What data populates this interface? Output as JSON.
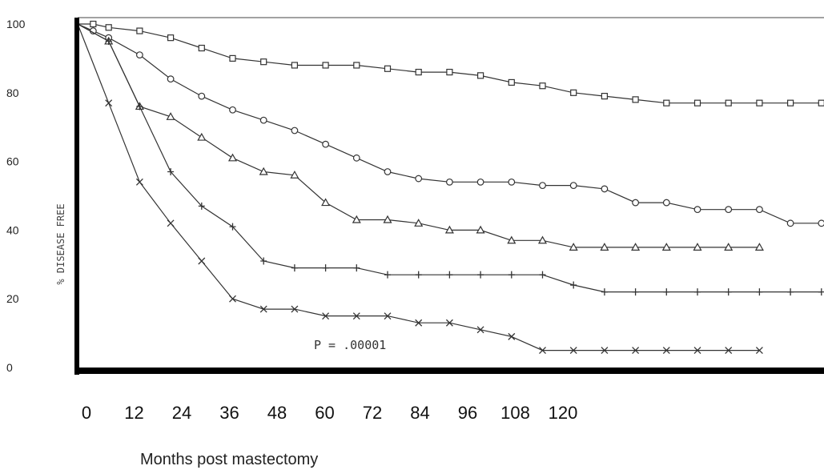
{
  "chart_data": {
    "type": "line",
    "ylabel": "% DISEASE FREE",
    "xlabel": "Months post mastectomy",
    "annotation": "P = .00001",
    "ylim": [
      0,
      100
    ],
    "xlim": [
      0,
      144
    ],
    "yticks": [
      0,
      20,
      40,
      60,
      80,
      100
    ],
    "xticks": [
      0,
      12,
      24,
      36,
      48,
      60,
      72,
      84,
      96,
      108,
      120
    ],
    "grid": false,
    "legend": "none",
    "series": [
      {
        "marker": "square",
        "x": [
          0,
          3,
          6,
          12,
          18,
          24,
          30,
          36,
          42,
          48,
          54,
          60,
          66,
          72,
          78,
          84,
          90,
          96,
          102,
          108,
          114,
          120,
          126,
          132,
          138,
          144
        ],
        "y": [
          100,
          100,
          99,
          98,
          96,
          93,
          90,
          89,
          88,
          88,
          88,
          87,
          86,
          86,
          85,
          83,
          82,
          80,
          79,
          78,
          77,
          77,
          77,
          77,
          77,
          77
        ]
      },
      {
        "marker": "circle",
        "x": [
          0,
          3,
          6,
          12,
          18,
          24,
          30,
          36,
          42,
          48,
          54,
          60,
          66,
          72,
          78,
          84,
          90,
          96,
          102,
          108,
          114,
          120,
          126,
          132,
          138,
          144
        ],
        "y": [
          100,
          98,
          96,
          91,
          84,
          79,
          75,
          72,
          69,
          65,
          61,
          57,
          55,
          54,
          54,
          54,
          53,
          53,
          52,
          48,
          48,
          46,
          46,
          46,
          42,
          42
        ]
      },
      {
        "marker": "triangle",
        "x": [
          0,
          6,
          12,
          18,
          24,
          30,
          36,
          42,
          48,
          54,
          60,
          66,
          72,
          78,
          84,
          90,
          96,
          102,
          108,
          114,
          120,
          126,
          132
        ],
        "y": [
          100,
          95,
          76,
          73,
          67,
          61,
          57,
          56,
          48,
          43,
          43,
          42,
          40,
          40,
          37,
          37,
          35,
          35,
          35,
          35,
          35,
          35,
          35
        ]
      },
      {
        "marker": "plus",
        "x": [
          0,
          6,
          12,
          18,
          24,
          30,
          36,
          42,
          48,
          54,
          60,
          66,
          72,
          78,
          84,
          90,
          96,
          102,
          108,
          114,
          120,
          126,
          132,
          138,
          144
        ],
        "y": [
          100,
          95,
          76,
          57,
          47,
          41,
          31,
          29,
          29,
          29,
          27,
          27,
          27,
          27,
          27,
          27,
          24,
          22,
          22,
          22,
          22,
          22,
          22,
          22,
          22
        ]
      },
      {
        "marker": "x",
        "x": [
          0,
          6,
          12,
          18,
          24,
          30,
          36,
          42,
          48,
          54,
          60,
          66,
          72,
          78,
          84,
          90,
          96,
          102,
          108,
          114,
          120,
          126,
          132
        ],
        "y": [
          100,
          77,
          54,
          42,
          31,
          20,
          17,
          17,
          15,
          15,
          15,
          13,
          13,
          11,
          9,
          5,
          5,
          5,
          5,
          5,
          5,
          5,
          5
        ]
      }
    ]
  }
}
